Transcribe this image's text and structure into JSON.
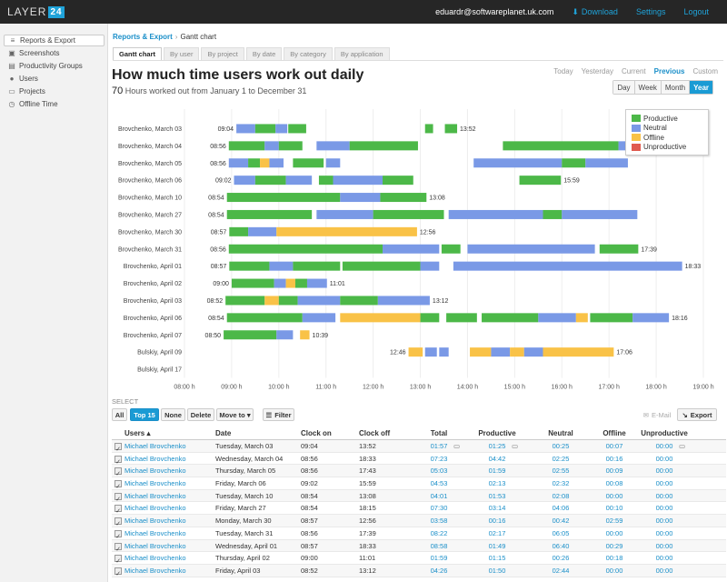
{
  "app": {
    "logo_text": "LAYER",
    "logo_mark": "24"
  },
  "topbar": {
    "user": "eduardr@softwareplanet.uk.com",
    "download": "Download",
    "settings": "Settings",
    "logout": "Logout"
  },
  "sidebar": {
    "items": [
      {
        "label": "Reports & Export",
        "icon": "report-icon",
        "glyph": "≡"
      },
      {
        "label": "Screenshots",
        "icon": "image-icon",
        "glyph": "▣"
      },
      {
        "label": "Productivity Groups",
        "icon": "chart-icon",
        "glyph": "▤"
      },
      {
        "label": "Users",
        "icon": "user-icon",
        "glyph": "●"
      },
      {
        "label": "Projects",
        "icon": "folder-icon",
        "glyph": "▭"
      },
      {
        "label": "Offline Time",
        "icon": "clock-icon",
        "glyph": "◷"
      }
    ]
  },
  "breadcrumb": {
    "root": "Reports & Export",
    "current": "Gantt chart"
  },
  "tabs": [
    "Gantt chart",
    "By user",
    "By project",
    "By date",
    "By category",
    "By application"
  ],
  "header": {
    "title": "How much time users work out daily",
    "hours": "70",
    "subtitle": "Hours worked out from January 1 to December 31"
  },
  "periods": [
    "Today",
    "Yesterday",
    "Current",
    "Previous",
    "Custom"
  ],
  "ranges": [
    "Day",
    "Week",
    "Month",
    "Year"
  ],
  "colors": {
    "productive": "#4cb848",
    "neutral": "#7a99e6",
    "offline": "#f9c247",
    "unproductive": "#e05a4f"
  },
  "chart_data": {
    "type": "gantt",
    "x_ticks": [
      "08:00 h",
      "09:00 h",
      "10:00 h",
      "11:00 h",
      "12:00 h",
      "13:00 h",
      "14:00 h",
      "15:00 h",
      "16:00 h",
      "17:00 h",
      "18:00 h",
      "19:00 h"
    ],
    "x_range": [
      8,
      19
    ],
    "legend": [
      "Productive",
      "Neutral",
      "Offline",
      "Unproductive"
    ],
    "rows": [
      {
        "label": "Brovchenko, March 03",
        "start": "09:04",
        "end": "13:52",
        "segments": [
          [
            9.1,
            9.5,
            "n"
          ],
          [
            9.5,
            9.93,
            "p"
          ],
          [
            9.93,
            10.18,
            "n"
          ],
          [
            10.2,
            10.58,
            "p"
          ],
          [
            13.1,
            13.27,
            "p"
          ],
          [
            13.52,
            13.78,
            "p"
          ]
        ]
      },
      {
        "label": "Brovchenko, March 04",
        "start": "08:56",
        "end": "",
        "segments": [
          [
            8.94,
            9.7,
            "p"
          ],
          [
            9.7,
            10.0,
            "n"
          ],
          [
            10.0,
            10.5,
            "p"
          ],
          [
            10.8,
            11.5,
            "n"
          ],
          [
            11.5,
            12.95,
            "p"
          ],
          [
            14.75,
            17.2,
            "p"
          ],
          [
            17.2,
            18.3,
            "n"
          ]
        ]
      },
      {
        "label": "Brovchenko, March 05",
        "start": "08:56",
        "end": "",
        "segments": [
          [
            8.94,
            9.35,
            "n"
          ],
          [
            9.35,
            9.6,
            "p"
          ],
          [
            9.6,
            9.8,
            "o"
          ],
          [
            9.8,
            10.1,
            "n"
          ],
          [
            10.3,
            10.95,
            "p"
          ],
          [
            11.0,
            11.3,
            "n"
          ],
          [
            14.13,
            16.0,
            "n"
          ],
          [
            16.0,
            16.5,
            "p"
          ],
          [
            16.5,
            17.4,
            "n"
          ]
        ]
      },
      {
        "label": "Brovchenko, March 06",
        "start": "09:02",
        "end": "15:59",
        "segments": [
          [
            9.05,
            9.5,
            "n"
          ],
          [
            9.5,
            10.15,
            "p"
          ],
          [
            10.15,
            10.7,
            "n"
          ],
          [
            10.85,
            11.15,
            "p"
          ],
          [
            11.15,
            12.2,
            "n"
          ],
          [
            12.2,
            12.85,
            "p"
          ],
          [
            15.1,
            15.98,
            "p"
          ]
        ]
      },
      {
        "label": "Brovchenko, March 10",
        "start": "08:54",
        "end": "13:08",
        "segments": [
          [
            8.9,
            11.3,
            "p"
          ],
          [
            11.3,
            12.15,
            "n"
          ],
          [
            12.15,
            13.13,
            "p"
          ]
        ]
      },
      {
        "label": "Brovchenko, March 27",
        "start": "08:54",
        "end": "",
        "segments": [
          [
            8.9,
            10.7,
            "p"
          ],
          [
            10.8,
            12.0,
            "n"
          ],
          [
            12.0,
            13.5,
            "p"
          ],
          [
            13.6,
            15.6,
            "n"
          ],
          [
            15.6,
            16.0,
            "p"
          ],
          [
            16.0,
            17.6,
            "n"
          ]
        ]
      },
      {
        "label": "Brovchenko, March 30",
        "start": "08:57",
        "end": "12:56",
        "segments": [
          [
            8.95,
            9.35,
            "p"
          ],
          [
            9.35,
            9.95,
            "n"
          ],
          [
            9.95,
            12.93,
            "o"
          ]
        ]
      },
      {
        "label": "Brovchenko, March 31",
        "start": "08:56",
        "end": "17:39",
        "segments": [
          [
            8.94,
            12.2,
            "p"
          ],
          [
            12.2,
            13.4,
            "n"
          ],
          [
            13.45,
            13.85,
            "p"
          ],
          [
            14.0,
            16.7,
            "n"
          ],
          [
            16.8,
            17.62,
            "p"
          ]
        ]
      },
      {
        "label": "Brovchenko, April 01",
        "start": "08:57",
        "end": "18:33",
        "segments": [
          [
            8.95,
            9.8,
            "p"
          ],
          [
            9.8,
            10.3,
            "n"
          ],
          [
            10.3,
            11.3,
            "p"
          ],
          [
            11.35,
            13.0,
            "p"
          ],
          [
            13.0,
            13.4,
            "n"
          ],
          [
            13.7,
            18.55,
            "n"
          ]
        ]
      },
      {
        "label": "Brovchenko, April 02",
        "start": "09:00",
        "end": "11:01",
        "segments": [
          [
            9.0,
            9.9,
            "p"
          ],
          [
            9.9,
            10.15,
            "n"
          ],
          [
            10.15,
            10.35,
            "o"
          ],
          [
            10.35,
            10.6,
            "p"
          ],
          [
            10.6,
            11.02,
            "n"
          ]
        ]
      },
      {
        "label": "Brovchenko, April 03",
        "start": "08:52",
        "end": "13:12",
        "segments": [
          [
            8.87,
            9.7,
            "p"
          ],
          [
            9.7,
            10.0,
            "o"
          ],
          [
            10.0,
            10.4,
            "p"
          ],
          [
            10.4,
            11.3,
            "n"
          ],
          [
            11.3,
            12.1,
            "p"
          ],
          [
            12.1,
            13.2,
            "n"
          ]
        ]
      },
      {
        "label": "Brovchenko, April 06",
        "start": "08:54",
        "end": "18:16",
        "segments": [
          [
            8.9,
            10.5,
            "p"
          ],
          [
            10.5,
            11.2,
            "n"
          ],
          [
            11.3,
            13.0,
            "o"
          ],
          [
            13.0,
            13.4,
            "p"
          ],
          [
            13.55,
            14.2,
            "p"
          ],
          [
            14.3,
            15.5,
            "p"
          ],
          [
            15.5,
            16.3,
            "n"
          ],
          [
            16.3,
            16.55,
            "o"
          ],
          [
            16.6,
            17.5,
            "p"
          ],
          [
            17.5,
            18.27,
            "n"
          ]
        ]
      },
      {
        "label": "Brovchenko, April 07",
        "start": "08:50",
        "end": "10:39",
        "segments": [
          [
            8.83,
            9.95,
            "p"
          ],
          [
            9.95,
            10.3,
            "n"
          ],
          [
            10.45,
            10.65,
            "o"
          ]
        ]
      },
      {
        "label": "Bulskiy, April 09",
        "start": "12:46",
        "end": "17:06",
        "segments": [
          [
            12.75,
            13.05,
            "o"
          ],
          [
            13.1,
            13.35,
            "n"
          ],
          [
            13.4,
            13.6,
            "n"
          ],
          [
            14.05,
            14.5,
            "o"
          ],
          [
            14.5,
            14.9,
            "n"
          ],
          [
            14.9,
            15.2,
            "o"
          ],
          [
            15.2,
            15.6,
            "n"
          ],
          [
            15.6,
            17.1,
            "o"
          ]
        ]
      },
      {
        "label": "Bulskiy, April 17",
        "start": "",
        "end": "",
        "segments": []
      }
    ]
  },
  "select": {
    "label": "SELECT",
    "all": "All",
    "top15": "Top 15",
    "none": "None",
    "delete": "Delete",
    "move_to": "Move to ▾",
    "filter": "Filter",
    "email": "E-Mail",
    "export": "Export"
  },
  "table": {
    "headers": [
      "Users ▴",
      "Date",
      "Clock on",
      "Clock off",
      "Total",
      "Productive",
      "Neutral",
      "Offline",
      "Unproductive"
    ],
    "rows": [
      [
        "Michael Brovchenko",
        "Tuesday, March 03",
        "09:04",
        "13:52",
        "01:57",
        "01:25",
        "00:25",
        "00:07",
        "00:00"
      ],
      [
        "Michael Brovchenko",
        "Wednesday, March 04",
        "08:56",
        "18:33",
        "07:23",
        "04:42",
        "02:25",
        "00:16",
        "00:00"
      ],
      [
        "Michael Brovchenko",
        "Thursday, March 05",
        "08:56",
        "17:43",
        "05:03",
        "01:59",
        "02:55",
        "00:09",
        "00:00"
      ],
      [
        "Michael Brovchenko",
        "Friday, March 06",
        "09:02",
        "15:59",
        "04:53",
        "02:13",
        "02:32",
        "00:08",
        "00:00"
      ],
      [
        "Michael Brovchenko",
        "Tuesday, March 10",
        "08:54",
        "13:08",
        "04:01",
        "01:53",
        "02:08",
        "00:00",
        "00:00"
      ],
      [
        "Michael Brovchenko",
        "Friday, March 27",
        "08:54",
        "18:15",
        "07:30",
        "03:14",
        "04:06",
        "00:10",
        "00:00"
      ],
      [
        "Michael Brovchenko",
        "Monday, March 30",
        "08:57",
        "12:56",
        "03:58",
        "00:16",
        "00:42",
        "02:59",
        "00:00"
      ],
      [
        "Michael Brovchenko",
        "Tuesday, March 31",
        "08:56",
        "17:39",
        "08:22",
        "02:17",
        "06:05",
        "00:00",
        "00:00"
      ],
      [
        "Michael Brovchenko",
        "Wednesday, April 01",
        "08:57",
        "18:33",
        "08:58",
        "01:49",
        "06:40",
        "00:29",
        "00:00"
      ],
      [
        "Michael Brovchenko",
        "Thursday, April 02",
        "09:00",
        "11:01",
        "01:59",
        "01:15",
        "00:26",
        "00:18",
        "00:00"
      ],
      [
        "Michael Brovchenko",
        "Friday, April 03",
        "08:52",
        "13:12",
        "04:26",
        "01:50",
        "02:44",
        "00:00",
        "00:00"
      ]
    ]
  }
}
